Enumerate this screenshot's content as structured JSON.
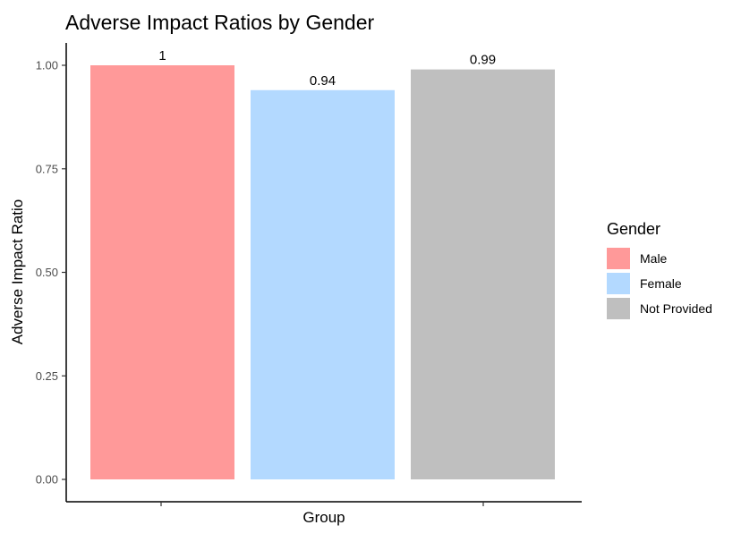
{
  "chart_data": {
    "type": "bar",
    "title": "Adverse Impact Ratios by Gender",
    "xlabel": "Group",
    "ylabel": "Adverse Impact Ratio",
    "ylim": [
      0,
      1
    ],
    "yticks": [
      "0.00",
      "0.25",
      "0.50",
      "0.75",
      "1.00"
    ],
    "grid": false,
    "legend_position": "right",
    "legend_title": "Gender",
    "series": [
      {
        "name": "Male",
        "value": 1.0,
        "label": "1",
        "color": "#FF9999"
      },
      {
        "name": "Female",
        "value": 0.94,
        "label": "0.94",
        "color": "#B3D9FF"
      },
      {
        "name": "Not Provided",
        "value": 0.99,
        "label": "0.99",
        "color": "#BFBFBF"
      }
    ]
  }
}
